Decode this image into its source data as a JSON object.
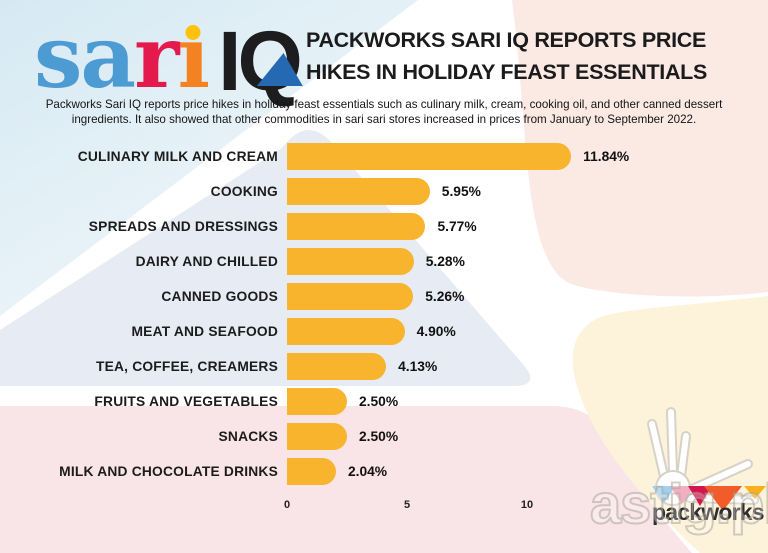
{
  "header": {
    "logo": {
      "sari_letters": [
        {
          "char": "s",
          "color": "#4d9bd3"
        },
        {
          "char": "a",
          "color": "#4d9bd3"
        },
        {
          "char": "r",
          "color": "#e41a4d"
        },
        {
          "char": "ı",
          "color": "#f58220",
          "dot_color": "#ffc20e"
        }
      ],
      "iq_text": "IQ",
      "iq_color": "#1d1d1f",
      "iq_accent": "#2569b3"
    },
    "title_line1": "PACKWORKS SARI IQ REPORTS PRICE",
    "title_line2": "HIKES IN HOLIDAY FEAST ESSENTIALS",
    "subtitle": "Packworks Sari IQ reports price hikes in holiday feast essentials such as culinary milk, cream, cooking oil, and other canned dessert ingredients. It also showed that other commodities in sari sari stores increased in prices from January to September 2022."
  },
  "chart_data": {
    "type": "bar",
    "orientation": "horizontal",
    "title": "PACKWORKS SARI IQ REPORTS PRICE HIKES IN HOLIDAY FEAST ESSENTIALS",
    "categories": [
      "CULINARY MILK AND CREAM",
      "COOKING",
      "SPREADS AND DRESSINGS",
      "DAIRY AND CHILLED",
      "CANNED GOODS",
      "MEAT AND SEAFOOD",
      "TEA, COFFEE, CREAMERS",
      "FRUITS AND VEGETABLES",
      "SNACKS",
      "MILK AND CHOCOLATE DRINKS"
    ],
    "values": [
      11.84,
      5.95,
      5.77,
      5.28,
      5.26,
      4.9,
      4.13,
      2.5,
      2.5,
      2.04
    ],
    "value_labels": [
      "11.84%",
      "5.95%",
      "5.77%",
      "5.28%",
      "5.26%",
      "4.90%",
      "4.13%",
      "2.50%",
      "2.50%",
      "2.04%"
    ],
    "xticks": [
      0,
      5,
      10
    ],
    "xlim": [
      0,
      12
    ],
    "xlabel": "",
    "ylabel": "",
    "grid": false,
    "legend": false,
    "bar_color": "#f7b42c"
  },
  "branding": {
    "wordmark": "packworks",
    "wordmark_color": "#2d2d31",
    "triangles": [
      {
        "color": "#9fd0ee",
        "w": 24,
        "h": 17,
        "ml": 0
      },
      {
        "color": "#f2afc3",
        "w": 24,
        "h": 18,
        "ml": -6
      },
      {
        "color": "#d5164e",
        "w": 24,
        "h": 20,
        "ml": -6
      },
      {
        "color": "#f15c2a",
        "w": 38,
        "h": 25,
        "ml": -8
      },
      {
        "color": "#f8b01c",
        "w": 22,
        "h": 13,
        "ml": 2
      }
    ]
  },
  "watermark": {
    "text": "astig.ph"
  },
  "colors": {
    "bg_blue_start": "#d6e9f3",
    "bg_blue_end": "#f0f7fa",
    "bg_pink_top": "#fbe9e4",
    "bg_lavender": "#e7ebf4",
    "bg_pink_bottom": "#f9e4e8",
    "bg_cream": "#fcf3da"
  }
}
